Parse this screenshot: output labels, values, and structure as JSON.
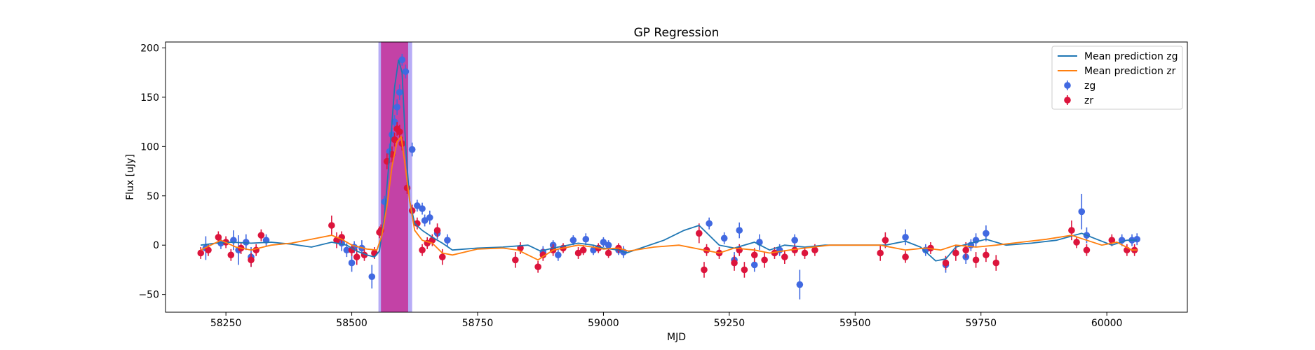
{
  "chart_data": {
    "type": "scatter",
    "title": "GP Regression",
    "xlabel": "MJD",
    "ylabel": "Flux [uJy]",
    "xlim": [
      58130,
      60160
    ],
    "ylim": [
      -68,
      206
    ],
    "xticks": [
      58250,
      58500,
      58750,
      59000,
      59250,
      59500,
      59750,
      60000
    ],
    "yticks": [
      -50,
      0,
      50,
      100,
      150,
      200
    ],
    "grid": false,
    "legend_position": "top-right",
    "shaded_regions": [
      {
        "x0": 58553,
        "x1": 58620,
        "color": "#7b68ee"
      },
      {
        "x0": 58558,
        "x1": 58612,
        "color": "#c71585"
      }
    ],
    "lines": [
      {
        "name": "Mean prediction zg",
        "color": "#1f77b4",
        "x": [
          58200,
          58230,
          58260,
          58300,
          58340,
          58380,
          58420,
          58460,
          58490,
          58510,
          58530,
          58545,
          58555,
          58565,
          58575,
          58585,
          58593,
          58600,
          58607,
          58615,
          58625,
          58640,
          58660,
          58680,
          58700,
          58750,
          58800,
          58850,
          58875,
          58900,
          58950,
          58980,
          59000,
          59030,
          59045,
          59080,
          59120,
          59160,
          59190,
          59210,
          59230,
          59260,
          59300,
          59330,
          59360,
          59400,
          59440,
          59480,
          59520,
          59560,
          59600,
          59630,
          59660,
          59680,
          59700,
          59730,
          59760,
          59800,
          59850,
          59900,
          59950,
          59980,
          60010,
          60040,
          60060
        ],
        "y": [
          0,
          2,
          3,
          2,
          3,
          1,
          -2,
          3,
          0,
          -6,
          -10,
          -12,
          -6,
          30,
          90,
          160,
          188,
          175,
          100,
          45,
          22,
          15,
          8,
          2,
          -5,
          -3,
          -2,
          0,
          -6,
          -3,
          2,
          0,
          -3,
          -5,
          -8,
          -2,
          5,
          15,
          20,
          10,
          0,
          -3,
          3,
          -5,
          0,
          -2,
          0,
          0,
          0,
          0,
          4,
          -2,
          -16,
          -14,
          -2,
          2,
          6,
          0,
          2,
          5,
          12,
          6,
          0,
          5,
          5
        ]
      },
      {
        "name": "Mean prediction zr",
        "color": "#ff7f0e",
        "x": [
          58200,
          58240,
          58270,
          58300,
          58340,
          58380,
          58420,
          58460,
          58480,
          58500,
          58530,
          58550,
          58560,
          58570,
          58580,
          58590,
          58598,
          58605,
          58615,
          58625,
          58640,
          58660,
          58680,
          58700,
          58750,
          58800,
          58830,
          58870,
          58900,
          58950,
          58980,
          59000,
          59030,
          59050,
          59100,
          59150,
          59200,
          59230,
          59260,
          59300,
          59330,
          59370,
          59400,
          59450,
          59500,
          59550,
          59600,
          59640,
          59670,
          59700,
          59740,
          59780,
          59830,
          59880,
          59930,
          59960,
          59990,
          60020,
          60050,
          60060
        ],
        "y": [
          -5,
          5,
          -2,
          -5,
          0,
          2,
          6,
          10,
          6,
          0,
          -4,
          -5,
          10,
          40,
          80,
          105,
          110,
          85,
          45,
          15,
          5,
          2,
          -8,
          -10,
          -4,
          -3,
          -5,
          -15,
          -5,
          0,
          -2,
          -4,
          -3,
          -6,
          -2,
          0,
          -5,
          -8,
          -3,
          -5,
          -8,
          -5,
          -3,
          0,
          0,
          0,
          -5,
          -3,
          -5,
          0,
          -2,
          0,
          3,
          6,
          10,
          5,
          0,
          3,
          -5,
          -5
        ]
      }
    ],
    "series": [
      {
        "name": "zg",
        "color": "#4169e1",
        "points": [
          [
            58210,
            -3,
            12
          ],
          [
            58240,
            2,
            6
          ],
          [
            58265,
            5,
            10
          ],
          [
            58275,
            -5,
            15
          ],
          [
            58290,
            3,
            8
          ],
          [
            58300,
            -12,
            10
          ],
          [
            58330,
            5,
            6
          ],
          [
            58480,
            2,
            8
          ],
          [
            58490,
            -5,
            7
          ],
          [
            58500,
            -18,
            9
          ],
          [
            58505,
            -2,
            6
          ],
          [
            58520,
            -3,
            8
          ],
          [
            58540,
            -32,
            12
          ],
          [
            58565,
            44,
            6
          ],
          [
            58575,
            95,
            8
          ],
          [
            58580,
            112,
            7
          ],
          [
            58585,
            125,
            7
          ],
          [
            58590,
            140,
            8
          ],
          [
            58595,
            155,
            8
          ],
          [
            58600,
            188,
            6
          ],
          [
            58607,
            176,
            7
          ],
          [
            58620,
            97,
            7
          ],
          [
            58630,
            40,
            6
          ],
          [
            58640,
            37,
            6
          ],
          [
            58645,
            25,
            6
          ],
          [
            58655,
            28,
            7
          ],
          [
            58670,
            12,
            6
          ],
          [
            58690,
            5,
            6
          ],
          [
            58880,
            -7,
            6
          ],
          [
            58900,
            0,
            5
          ],
          [
            58910,
            -10,
            6
          ],
          [
            58940,
            5,
            5
          ],
          [
            58965,
            6,
            6
          ],
          [
            58980,
            -5,
            5
          ],
          [
            59000,
            3,
            5
          ],
          [
            59010,
            0,
            5
          ],
          [
            59030,
            -5,
            5
          ],
          [
            59040,
            -7,
            6
          ],
          [
            59210,
            22,
            6
          ],
          [
            59240,
            7,
            6
          ],
          [
            59260,
            -15,
            8
          ],
          [
            59270,
            15,
            8
          ],
          [
            59300,
            -20,
            7
          ],
          [
            59310,
            3,
            8
          ],
          [
            59350,
            -5,
            6
          ],
          [
            59380,
            5,
            6
          ],
          [
            59390,
            -40,
            15
          ],
          [
            59600,
            8,
            8
          ],
          [
            59640,
            -5,
            6
          ],
          [
            59680,
            -20,
            8
          ],
          [
            59720,
            -12,
            7
          ],
          [
            59730,
            0,
            6
          ],
          [
            59740,
            5,
            7
          ],
          [
            59760,
            12,
            8
          ],
          [
            59950,
            34,
            18
          ],
          [
            59960,
            10,
            8
          ],
          [
            60030,
            5,
            6
          ],
          [
            60050,
            5,
            6
          ],
          [
            60060,
            6,
            6
          ]
        ]
      },
      {
        "name": "zr",
        "color": "#dc143c",
        "points": [
          [
            58200,
            -8,
            6
          ],
          [
            58215,
            -5,
            6
          ],
          [
            58235,
            8,
            6
          ],
          [
            58250,
            3,
            6
          ],
          [
            58260,
            -10,
            6
          ],
          [
            58280,
            -3,
            6
          ],
          [
            58300,
            -15,
            7
          ],
          [
            58310,
            -5,
            6
          ],
          [
            58320,
            10,
            6
          ],
          [
            58460,
            20,
            10
          ],
          [
            58470,
            5,
            8
          ],
          [
            58480,
            8,
            6
          ],
          [
            58500,
            -5,
            6
          ],
          [
            58510,
            -12,
            8
          ],
          [
            58525,
            -10,
            6
          ],
          [
            58545,
            -8,
            6
          ],
          [
            58555,
            13,
            6
          ],
          [
            58558,
            15,
            6
          ],
          [
            58570,
            85,
            8
          ],
          [
            58580,
            92,
            8
          ],
          [
            58585,
            107,
            7
          ],
          [
            58590,
            118,
            7
          ],
          [
            58595,
            115,
            7
          ],
          [
            58600,
            103,
            7
          ],
          [
            58610,
            58,
            6
          ],
          [
            58620,
            35,
            6
          ],
          [
            58630,
            22,
            6
          ],
          [
            58640,
            -5,
            6
          ],
          [
            58650,
            2,
            6
          ],
          [
            58660,
            5,
            6
          ],
          [
            58670,
            15,
            7
          ],
          [
            58680,
            -12,
            8
          ],
          [
            58825,
            -15,
            8
          ],
          [
            58835,
            -3,
            6
          ],
          [
            58870,
            -22,
            6
          ],
          [
            58880,
            -10,
            6
          ],
          [
            58900,
            -5,
            6
          ],
          [
            58920,
            -3,
            5
          ],
          [
            58950,
            -8,
            6
          ],
          [
            58960,
            -5,
            5
          ],
          [
            58990,
            -3,
            5
          ],
          [
            59010,
            -8,
            5
          ],
          [
            59030,
            -3,
            5
          ],
          [
            59190,
            12,
            10
          ],
          [
            59200,
            -25,
            8
          ],
          [
            59205,
            -5,
            6
          ],
          [
            59230,
            -8,
            6
          ],
          [
            59260,
            -18,
            8
          ],
          [
            59270,
            -5,
            6
          ],
          [
            59280,
            -25,
            8
          ],
          [
            59300,
            -10,
            7
          ],
          [
            59320,
            -15,
            8
          ],
          [
            59340,
            -8,
            6
          ],
          [
            59360,
            -12,
            7
          ],
          [
            59380,
            -5,
            6
          ],
          [
            59400,
            -8,
            6
          ],
          [
            59420,
            -5,
            6
          ],
          [
            59550,
            -8,
            8
          ],
          [
            59560,
            5,
            8
          ],
          [
            59600,
            -12,
            6
          ],
          [
            59650,
            -3,
            6
          ],
          [
            59680,
            -18,
            7
          ],
          [
            59700,
            -8,
            8
          ],
          [
            59720,
            -5,
            8
          ],
          [
            59740,
            -15,
            8
          ],
          [
            59760,
            -10,
            7
          ],
          [
            59780,
            -18,
            8
          ],
          [
            59930,
            15,
            10
          ],
          [
            59940,
            3,
            6
          ],
          [
            59960,
            -5,
            6
          ],
          [
            60010,
            5,
            6
          ],
          [
            60040,
            -5,
            6
          ],
          [
            60055,
            -5,
            6
          ]
        ]
      }
    ]
  }
}
